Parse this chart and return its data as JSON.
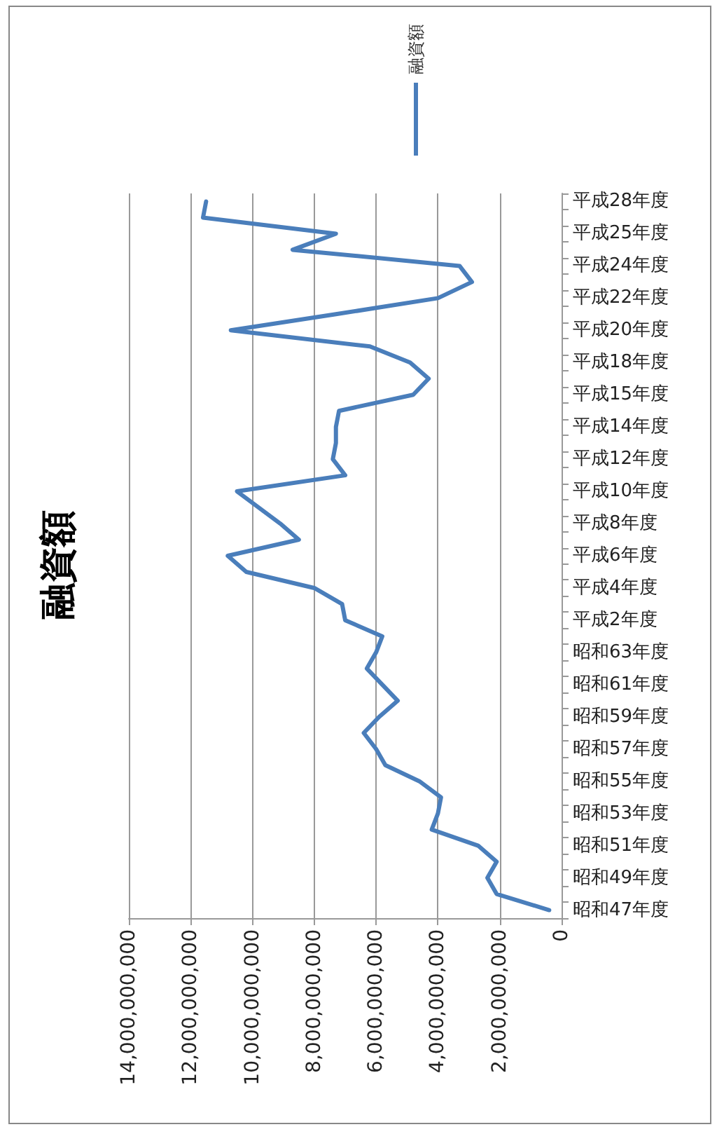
{
  "chart_data": {
    "type": "line",
    "title": "融資額",
    "categories": [
      "平成28年度",
      null,
      "平成25年度",
      null,
      "平成24年度",
      null,
      "平成22年度",
      null,
      "平成20年度",
      null,
      "平成18年度",
      null,
      "平成15年度",
      null,
      "平成14年度",
      null,
      "平成12年度",
      null,
      "平成10年度",
      null,
      "平成8年度",
      null,
      "平成6年度",
      null,
      "平成4年度",
      null,
      "平成2年度",
      null,
      "昭和63年度",
      null,
      "昭和61年度",
      null,
      "昭和59年度",
      null,
      "昭和57年度",
      null,
      "昭和55年度",
      null,
      "昭和53年度",
      null,
      "昭和51年度",
      null,
      "昭和49年度",
      null,
      "昭和47年度"
    ],
    "series": [
      {
        "name": "融資額",
        "color": "#4a7ebb",
        "values": [
          11500000000,
          11600000000,
          7300000000,
          8700000000,
          3300000000,
          2900000000,
          4000000000,
          7300000000,
          10700000000,
          6200000000,
          4900000000,
          4300000000,
          4800000000,
          7200000000,
          7300000000,
          7300000000,
          7400000000,
          7000000000,
          10500000000,
          9800000000,
          9100000000,
          8500000000,
          10800000000,
          10200000000,
          8000000000,
          7100000000,
          7000000000,
          5800000000,
          6000000000,
          6300000000,
          5800000000,
          5300000000,
          5900000000,
          6400000000,
          6000000000,
          5700000000,
          4600000000,
          3900000000,
          4000000000,
          4200000000,
          2700000000,
          2100000000,
          2400000000,
          2100000000,
          400000000
        ]
      }
    ],
    "orientation": "horizontal",
    "xlim": [
      14000000000,
      0
    ],
    "xticks": [
      {
        "value": 0,
        "label": "0"
      },
      {
        "value": 2000000000,
        "label": "2,000,000,000"
      },
      {
        "value": 4000000000,
        "label": "4,000,000,000"
      },
      {
        "value": 6000000000,
        "label": "6,000,000,000"
      },
      {
        "value": 8000000000,
        "label": "8,000,000,000"
      },
      {
        "value": 10000000000,
        "label": "10,000,000,000"
      },
      {
        "value": 12000000000,
        "label": "12,000,000,000"
      },
      {
        "value": 14000000000,
        "label": "14,000,000,000"
      }
    ],
    "grid": "x",
    "legend": "top",
    "marker": "none",
    "line_style": "solid"
  }
}
